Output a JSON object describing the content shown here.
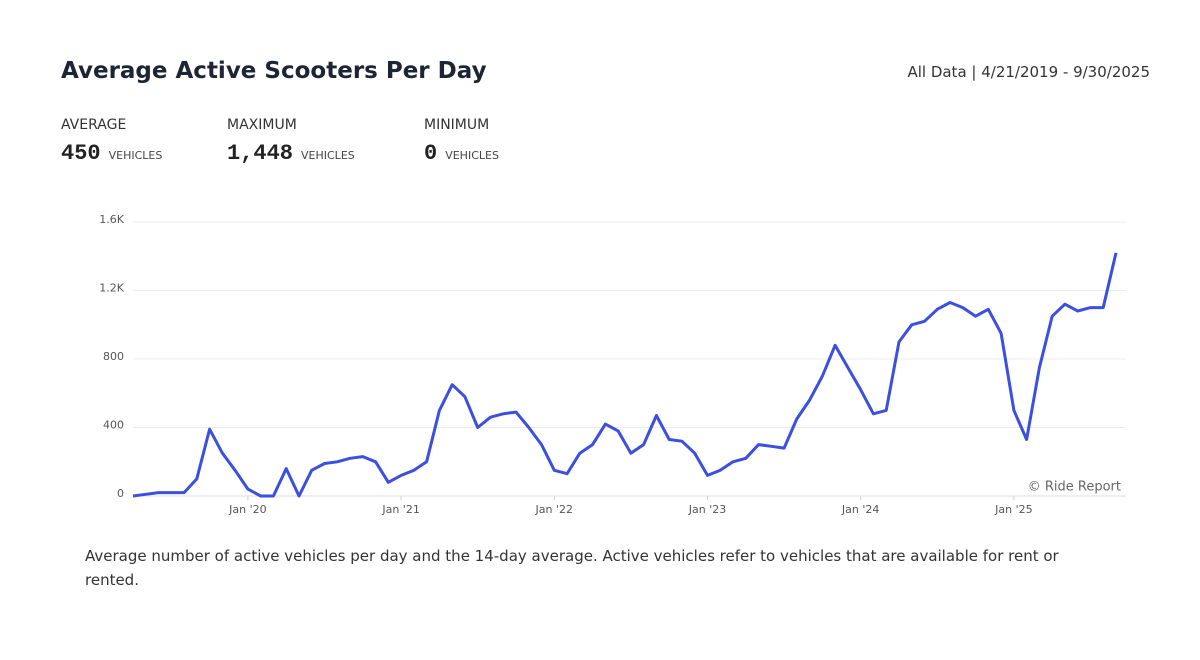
{
  "header": {
    "title": "Average Active Scooters Per Day",
    "date_range": "All Data | 4/21/2019 - 9/30/2025"
  },
  "stats": [
    {
      "label": "AVERAGE",
      "value": "450",
      "unit": "VEHICLES"
    },
    {
      "label": "MAXIMUM",
      "value": "1,448",
      "unit": "VEHICLES"
    },
    {
      "label": "MINIMUM",
      "value": "0",
      "unit": "VEHICLES"
    }
  ],
  "chart_data": {
    "type": "line",
    "color": "#3b4fe0",
    "x": [
      "2019-04",
      "2019-05",
      "2019-06",
      "2019-07",
      "2019-08",
      "2019-09",
      "2019-10",
      "2019-11",
      "2019-12",
      "2020-01",
      "2020-02",
      "2020-03",
      "2020-04",
      "2020-05",
      "2020-06",
      "2020-07",
      "2020-08",
      "2020-09",
      "2020-10",
      "2020-11",
      "2020-12",
      "2021-01",
      "2021-02",
      "2021-03",
      "2021-04",
      "2021-05",
      "2021-06",
      "2021-07",
      "2021-08",
      "2021-09",
      "2021-10",
      "2021-11",
      "2021-12",
      "2022-01",
      "2022-02",
      "2022-03",
      "2022-04",
      "2022-05",
      "2022-06",
      "2022-07",
      "2022-08",
      "2022-09",
      "2022-10",
      "2022-11",
      "2022-12",
      "2023-01",
      "2023-02",
      "2023-03",
      "2023-04",
      "2023-05",
      "2023-06",
      "2023-07",
      "2023-08",
      "2023-09",
      "2023-10",
      "2023-11",
      "2023-12",
      "2024-01",
      "2024-02",
      "2024-03",
      "2024-04",
      "2024-05",
      "2024-06",
      "2024-07",
      "2024-08",
      "2024-09",
      "2024-10",
      "2024-11",
      "2024-12",
      "2025-01",
      "2025-02",
      "2025-03",
      "2025-04",
      "2025-05",
      "2025-06",
      "2025-07",
      "2025-08",
      "2025-09"
    ],
    "values": [
      0,
      10,
      20,
      20,
      20,
      100,
      390,
      250,
      150,
      40,
      0,
      0,
      160,
      0,
      150,
      190,
      200,
      220,
      230,
      200,
      80,
      120,
      150,
      200,
      500,
      650,
      580,
      400,
      460,
      480,
      490,
      400,
      300,
      150,
      130,
      250,
      300,
      420,
      380,
      250,
      300,
      470,
      330,
      320,
      250,
      120,
      150,
      200,
      220,
      300,
      290,
      280,
      450,
      560,
      700,
      880,
      750,
      620,
      480,
      500,
      900,
      1000,
      1020,
      1090,
      1130,
      1100,
      1050,
      1090,
      950,
      500,
      330,
      750,
      1050,
      1120,
      1080,
      1100,
      1100,
      1420
    ],
    "xticks": [
      {
        "value": "2020-01",
        "label": "Jan '20"
      },
      {
        "value": "2021-01",
        "label": "Jan '21"
      },
      {
        "value": "2022-01",
        "label": "Jan '22"
      },
      {
        "value": "2023-01",
        "label": "Jan '23"
      },
      {
        "value": "2024-01",
        "label": "Jan '24"
      },
      {
        "value": "2025-01",
        "label": "Jan '25"
      }
    ],
    "ylim": [
      0,
      1600
    ],
    "yticks": [
      0,
      400,
      800,
      {
        "value": 1200,
        "label": "1.2K"
      },
      {
        "value": 1600,
        "label": "1.6K"
      }
    ],
    "grid": true,
    "annotation": "© Ride Report"
  },
  "caption": "Average number of active vehicles per day and the 14-day average. Active vehicles refer to vehicles that are available for rent or rented."
}
